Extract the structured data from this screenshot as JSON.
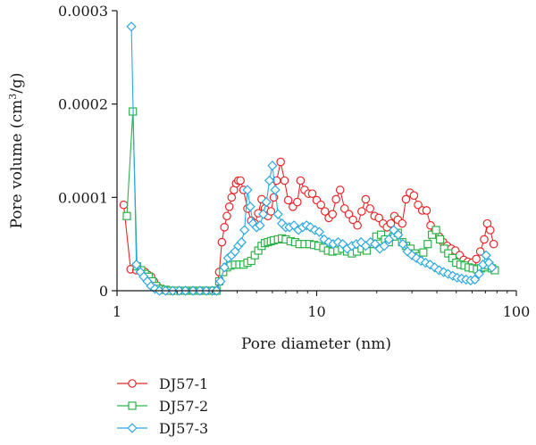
{
  "chart_data": {
    "type": "line",
    "xlabel": "Pore diameter (nm)",
    "ylabel_main": "Pore volume (cm",
    "ylabel_sup": "3",
    "ylabel_tail": "/g)",
    "xscale": "log",
    "xlim": [
      1,
      100
    ],
    "ylim": [
      0,
      0.0003
    ],
    "x_ticks": [
      {
        "value": 1,
        "label": "1"
      },
      {
        "value": 10,
        "label": "10"
      },
      {
        "value": 100,
        "label": "100"
      }
    ],
    "y_ticks": [
      {
        "value": 0,
        "label": "0"
      },
      {
        "value": 0.0001,
        "label": "0.0001"
      },
      {
        "value": 0.0002,
        "label": "0.0002"
      },
      {
        "value": 0.0003,
        "label": "0.0003"
      }
    ],
    "grid": false,
    "legend_position": "bottom-left",
    "series": [
      {
        "name": "DJ57-1",
        "color": "#e8282a",
        "marker": "circle",
        "points": [
          [
            1.08,
            9.2e-05
          ],
          [
            1.17,
            2.3e-05
          ],
          [
            1.25,
            2.2e-05
          ],
          [
            1.32,
            2.1e-05
          ],
          [
            1.38,
            2e-05
          ],
          [
            1.43,
            1.7e-05
          ],
          [
            1.48,
            1.5e-05
          ],
          [
            1.53,
            1e-05
          ],
          [
            1.6,
            4e-06
          ],
          [
            1.7,
            1e-06
          ],
          [
            1.85,
            0.0
          ],
          [
            2.0,
            0.0
          ],
          [
            2.2,
            0.0
          ],
          [
            2.4,
            0.0
          ],
          [
            2.6,
            0.0
          ],
          [
            2.8,
            0.0
          ],
          [
            3.0,
            0.0
          ],
          [
            3.15,
            0.0
          ],
          [
            3.25,
            2e-05
          ],
          [
            3.35,
            5.2e-05
          ],
          [
            3.45,
            6.8e-05
          ],
          [
            3.55,
            8e-05
          ],
          [
            3.65,
            9e-05
          ],
          [
            3.75,
            0.0001
          ],
          [
            3.85,
            0.000108
          ],
          [
            3.95,
            0.000115
          ],
          [
            4.05,
            0.000118
          ],
          [
            4.15,
            0.000118
          ],
          [
            4.3,
            0.000108
          ],
          [
            4.5,
            8.8e-05
          ],
          [
            4.7,
            7.5e-05
          ],
          [
            4.9,
            7.2e-05
          ],
          [
            5.1,
            8.3e-05
          ],
          [
            5.3,
            9.8e-05
          ],
          [
            5.5,
            8.8e-05
          ],
          [
            5.7,
            8e-05
          ],
          [
            5.9,
            8.5e-05
          ],
          [
            6.1,
            0.0001
          ],
          [
            6.3,
            0.000118
          ],
          [
            6.6,
            0.000138
          ],
          [
            6.9,
            0.000118
          ],
          [
            7.2,
            9.7e-05
          ],
          [
            7.6,
            9e-05
          ],
          [
            8.0,
            9.5e-05
          ],
          [
            8.3,
            0.000118
          ],
          [
            8.7,
            0.000108
          ],
          [
            9.1,
            0.000104
          ],
          [
            9.5,
            0.000104
          ],
          [
            10.0,
            9.7e-05
          ],
          [
            10.5,
            9.2e-05
          ],
          [
            11.0,
            8.5e-05
          ],
          [
            11.5,
            7.8e-05
          ],
          [
            12.0,
            8.2e-05
          ],
          [
            12.5,
            9.8e-05
          ],
          [
            13.1,
            0.000108
          ],
          [
            13.8,
            8.8e-05
          ],
          [
            14.5,
            8.2e-05
          ],
          [
            15.2,
            7.6e-05
          ],
          [
            16.0,
            7e-05
          ],
          [
            16.8,
            8.5e-05
          ],
          [
            17.6,
            9.8e-05
          ],
          [
            18.5,
            8.8e-05
          ],
          [
            19.5,
            8e-05
          ],
          [
            20.5,
            7.8e-05
          ],
          [
            21.5,
            7.2e-05
          ],
          [
            22.5,
            6.8e-05
          ],
          [
            23.5,
            7.2e-05
          ],
          [
            24.5,
            8e-05
          ],
          [
            25.5,
            7.6e-05
          ],
          [
            26.8,
            7.2e-05
          ],
          [
            28.0,
            9.8e-05
          ],
          [
            29.3,
            0.000105
          ],
          [
            30.7,
            0.000102
          ],
          [
            32.2,
            9.2e-05
          ],
          [
            33.8,
            8.6e-05
          ],
          [
            35.5,
            8.6e-05
          ],
          [
            37.2,
            7e-05
          ],
          [
            39.0,
            6.4e-05
          ],
          [
            41.0,
            5.8e-05
          ],
          [
            43.0,
            5.2e-05
          ],
          [
            45.0,
            4.8e-05
          ],
          [
            47.2,
            4.5e-05
          ],
          [
            49.5,
            4.3e-05
          ],
          [
            52.0,
            3.8e-05
          ],
          [
            54.5,
            3.3e-05
          ],
          [
            57.2,
            3.1e-05
          ],
          [
            60.0,
            3e-05
          ],
          [
            63.0,
            3.4e-05
          ],
          [
            66.0,
            4.2e-05
          ],
          [
            69.0,
            5.5e-05
          ],
          [
            71.5,
            7.2e-05
          ],
          [
            74.0,
            6.5e-05
          ],
          [
            77.0,
            5e-05
          ]
        ]
      },
      {
        "name": "DJ57-2",
        "color": "#2db34a",
        "marker": "square",
        "points": [
          [
            1.12,
            8e-05
          ],
          [
            1.2,
            0.000192
          ],
          [
            1.26,
            2.6e-05
          ],
          [
            1.32,
            2.2e-05
          ],
          [
            1.38,
            1.8e-05
          ],
          [
            1.44,
            1.5e-05
          ],
          [
            1.5,
            1e-05
          ],
          [
            1.57,
            5e-06
          ],
          [
            1.65,
            2e-06
          ],
          [
            1.75,
            1e-06
          ],
          [
            1.85,
            0.0
          ],
          [
            2.0,
            0.0
          ],
          [
            2.2,
            0.0
          ],
          [
            2.4,
            0.0
          ],
          [
            2.6,
            0.0
          ],
          [
            2.8,
            0.0
          ],
          [
            3.0,
            0.0
          ],
          [
            3.15,
            0.0
          ],
          [
            3.25,
            1e-05
          ],
          [
            3.4,
            2e-05
          ],
          [
            3.55,
            2.5e-05
          ],
          [
            3.7,
            2.7e-05
          ],
          [
            3.9,
            2.8e-05
          ],
          [
            4.1,
            2.8e-05
          ],
          [
            4.3,
            2.8e-05
          ],
          [
            4.5,
            3e-05
          ],
          [
            4.7,
            3.2e-05
          ],
          [
            4.9,
            3.8e-05
          ],
          [
            5.1,
            4.3e-05
          ],
          [
            5.3,
            4.8e-05
          ],
          [
            5.5,
            5.1e-05
          ],
          [
            5.7,
            5.2e-05
          ],
          [
            5.9,
            5.3e-05
          ],
          [
            6.1,
            5.4e-05
          ],
          [
            6.4,
            5.5e-05
          ],
          [
            6.7,
            5.6e-05
          ],
          [
            7.0,
            5.5e-05
          ],
          [
            7.4,
            5.3e-05
          ],
          [
            7.8,
            5.2e-05
          ],
          [
            8.2,
            5e-05
          ],
          [
            8.7,
            5e-05
          ],
          [
            9.2,
            5e-05
          ],
          [
            9.7,
            4.9e-05
          ],
          [
            10.2,
            4.8e-05
          ],
          [
            10.8,
            4.6e-05
          ],
          [
            11.4,
            4.3e-05
          ],
          [
            12.0,
            4.2e-05
          ],
          [
            12.7,
            4.3e-05
          ],
          [
            13.4,
            4.5e-05
          ],
          [
            14.2,
            4.2e-05
          ],
          [
            15.0,
            4e-05
          ],
          [
            15.9,
            4.2e-05
          ],
          [
            16.8,
            4.5e-05
          ],
          [
            17.8,
            4.3e-05
          ],
          [
            18.8,
            5e-05
          ],
          [
            19.9,
            5.8e-05
          ],
          [
            21.0,
            6e-05
          ],
          [
            22.0,
            5.5e-05
          ],
          [
            23.0,
            5.2e-05
          ],
          [
            24.2,
            5.8e-05
          ],
          [
            25.5,
            6.2e-05
          ],
          [
            26.8,
            5.2e-05
          ],
          [
            28.0,
            4.8e-05
          ],
          [
            29.5,
            4.5e-05
          ],
          [
            31.0,
            4e-05
          ],
          [
            32.5,
            3.7e-05
          ],
          [
            34.2,
            4.1e-05
          ],
          [
            36.0,
            5e-05
          ],
          [
            37.8,
            6e-05
          ],
          [
            39.6,
            6.5e-05
          ],
          [
            41.5,
            5.5e-05
          ],
          [
            43.5,
            4.5e-05
          ],
          [
            45.6,
            4e-05
          ],
          [
            47.8,
            3.5e-05
          ],
          [
            50.0,
            3e-05
          ],
          [
            52.5,
            2.8e-05
          ],
          [
            55.0,
            2.7e-05
          ],
          [
            57.7,
            2.5e-05
          ],
          [
            60.5,
            2.4e-05
          ],
          [
            63.5,
            2.3e-05
          ],
          [
            66.5,
            2.4e-05
          ],
          [
            69.5,
            2.5e-05
          ],
          [
            72.5,
            2.7e-05
          ],
          [
            75.5,
            2.4e-05
          ],
          [
            78.0,
            2.2e-05
          ]
        ]
      },
      {
        "name": "DJ57-3",
        "color": "#2ba8e0",
        "marker": "diamond",
        "points": [
          [
            1.18,
            0.000283
          ],
          [
            1.25,
            2.8e-05
          ],
          [
            1.31,
            2e-05
          ],
          [
            1.36,
            1.5e-05
          ],
          [
            1.42,
            1e-05
          ],
          [
            1.48,
            5e-06
          ],
          [
            1.55,
            2e-06
          ],
          [
            1.63,
            0.0
          ],
          [
            1.75,
            0.0
          ],
          [
            1.9,
            0.0
          ],
          [
            2.05,
            0.0
          ],
          [
            2.2,
            0.0
          ],
          [
            2.4,
            0.0
          ],
          [
            2.6,
            0.0
          ],
          [
            2.8,
            0.0
          ],
          [
            3.0,
            0.0
          ],
          [
            3.15,
            0.0
          ],
          [
            3.3,
            1e-05
          ],
          [
            3.45,
            2.5e-05
          ],
          [
            3.6,
            3.5e-05
          ],
          [
            3.75,
            3.8e-05
          ],
          [
            3.9,
            4.2e-05
          ],
          [
            4.05,
            4.8e-05
          ],
          [
            4.2,
            5.2e-05
          ],
          [
            4.35,
            6.5e-05
          ],
          [
            4.5,
            0.000108
          ],
          [
            4.65,
            9e-05
          ],
          [
            4.8,
            7.2e-05
          ],
          [
            5.0,
            6.8e-05
          ],
          [
            5.2,
            7e-05
          ],
          [
            5.4,
            8.2e-05
          ],
          [
            5.6,
            9.5e-05
          ],
          [
            5.8,
            0.000118
          ],
          [
            6.0,
            0.000134
          ],
          [
            6.2,
            0.000108
          ],
          [
            6.4,
            8.2e-05
          ],
          [
            6.7,
            7.2e-05
          ],
          [
            7.0,
            6.8e-05
          ],
          [
            7.3,
            6.8e-05
          ],
          [
            7.7,
            7e-05
          ],
          [
            8.1,
            6.5e-05
          ],
          [
            8.5,
            6.8e-05
          ],
          [
            8.9,
            7e-05
          ],
          [
            9.3,
            6.8e-05
          ],
          [
            9.8,
            6.5e-05
          ],
          [
            10.3,
            6.3e-05
          ],
          [
            10.9,
            5.5e-05
          ],
          [
            11.5,
            5.2e-05
          ],
          [
            12.1,
            5e-05
          ],
          [
            12.8,
            5.2e-05
          ],
          [
            13.5,
            5e-05
          ],
          [
            14.2,
            4.5e-05
          ],
          [
            15.0,
            4.8e-05
          ],
          [
            15.8,
            5e-05
          ],
          [
            16.7,
            5.2e-05
          ],
          [
            17.6,
            4.8e-05
          ],
          [
            18.6,
            5.2e-05
          ],
          [
            19.6,
            5e-05
          ],
          [
            20.7,
            4.5e-05
          ],
          [
            21.8,
            4.8e-05
          ],
          [
            23.0,
            5.5e-05
          ],
          [
            24.3,
            6.5e-05
          ],
          [
            25.6,
            6e-05
          ],
          [
            27.0,
            5e-05
          ],
          [
            28.5,
            4.2e-05
          ],
          [
            30.0,
            3.8e-05
          ],
          [
            31.6,
            3.5e-05
          ],
          [
            33.3,
            3.2e-05
          ],
          [
            35.1,
            3e-05
          ],
          [
            37.0,
            2.8e-05
          ],
          [
            39.0,
            2.5e-05
          ],
          [
            41.0,
            2.2e-05
          ],
          [
            43.2,
            2e-05
          ],
          [
            45.5,
            1.8e-05
          ],
          [
            48.0,
            1.6e-05
          ],
          [
            50.5,
            1.4e-05
          ],
          [
            53.2,
            1.3e-05
          ],
          [
            56.0,
            1.2e-05
          ],
          [
            59.0,
            1.1e-05
          ],
          [
            62.0,
            1.2e-05
          ],
          [
            65.0,
            1.8e-05
          ],
          [
            68.0,
            2.8e-05
          ],
          [
            70.5,
            3.8e-05
          ],
          [
            73.0,
            3e-05
          ],
          [
            75.5,
            2.5e-05
          ]
        ]
      }
    ]
  }
}
